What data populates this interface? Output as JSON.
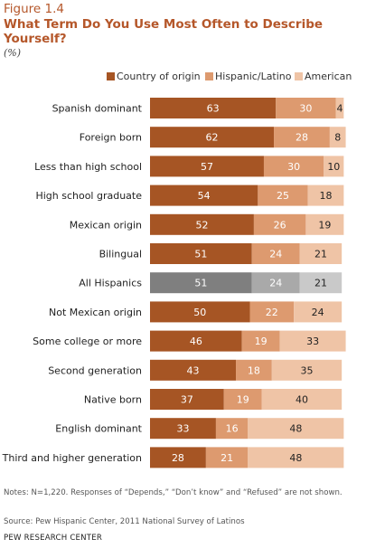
{
  "figure_label": "Figure 1.4",
  "chart_data": {
    "type": "bar",
    "orientation": "horizontal",
    "stacked": true,
    "title": "What Term Do You Use Most Often to Describe Yourself?",
    "subtitle": "(%)",
    "legend_position": "top-right",
    "grid": false,
    "xlim": [
      0,
      100
    ],
    "categories": [
      "Spanish dominant",
      "Foreign born",
      "Less than high school",
      "High school graduate",
      "Mexican origin",
      "Bilingual",
      "All Hispanics",
      "Not Mexican origin",
      "Some college or more",
      "Second generation",
      "Native born",
      "English dominant",
      "Third and higher generation"
    ],
    "highlight_category": "All Hispanics",
    "series": [
      {
        "name": "Country of origin",
        "color": "#a65524",
        "highlight_color": "#7f7f7f",
        "values": [
          63,
          62,
          57,
          54,
          52,
          51,
          51,
          50,
          46,
          43,
          37,
          33,
          28
        ]
      },
      {
        "name": "Hispanic/Latino",
        "color": "#dd9a6f",
        "highlight_color": "#a9a9a9",
        "values": [
          30,
          28,
          30,
          25,
          26,
          24,
          24,
          22,
          19,
          18,
          19,
          16,
          21
        ]
      },
      {
        "name": "American",
        "color": "#efc4a6",
        "highlight_color": "#c9c9c9",
        "values": [
          4,
          8,
          10,
          18,
          19,
          21,
          21,
          24,
          33,
          35,
          40,
          48,
          48
        ]
      }
    ]
  },
  "notes": "Notes: N=1,220. Responses of “Depends,” “Don’t know” and “Refused” are not shown.",
  "source": "Source: Pew Hispanic Center, 2011 National Survey of Latinos",
  "brand": "PEW RESEARCH CENTER"
}
